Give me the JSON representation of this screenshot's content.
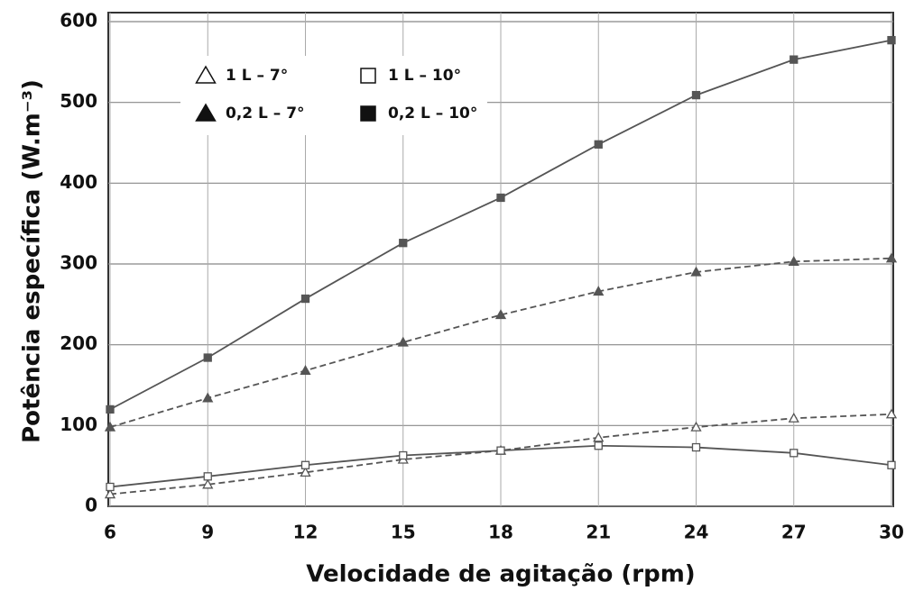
{
  "chart_data": {
    "type": "line",
    "x_label": "Velocidade de agitação (rpm)",
    "y_label": "Potência específica (W.m⁻³)",
    "x": [
      6,
      9,
      12,
      15,
      18,
      21,
      24,
      27,
      30
    ],
    "xlim": [
      6,
      30
    ],
    "xticks": [
      6,
      9,
      12,
      15,
      18,
      21,
      24,
      27,
      30
    ],
    "ylim": [
      0,
      600
    ],
    "yticks": [
      0,
      100,
      200,
      300,
      400,
      500,
      600
    ],
    "grid": true,
    "legend": "upper left",
    "series": [
      {
        "name": "1 L – 7°",
        "color": "#555555",
        "marker": "triangle",
        "filled": false,
        "dashed": true,
        "values": [
          15,
          27,
          42,
          58,
          69,
          85,
          98,
          109,
          114
        ]
      },
      {
        "name": "1 L – 10°",
        "color": "#555555",
        "marker": "square",
        "filled": false,
        "dashed": false,
        "values": [
          24,
          37,
          51,
          63,
          69,
          75,
          73,
          66,
          51
        ]
      },
      {
        "name": "0,2 L – 7°",
        "color": "#555555",
        "marker": "triangle",
        "filled": true,
        "dashed": true,
        "values": [
          98,
          134,
          168,
          203,
          237,
          266,
          290,
          303,
          307
        ]
      },
      {
        "name": "0,2 L – 10°",
        "color": "#555555",
        "marker": "square",
        "filled": true,
        "dashed": false,
        "values": [
          120,
          184,
          257,
          326,
          382,
          448,
          509,
          553,
          577
        ]
      }
    ]
  }
}
